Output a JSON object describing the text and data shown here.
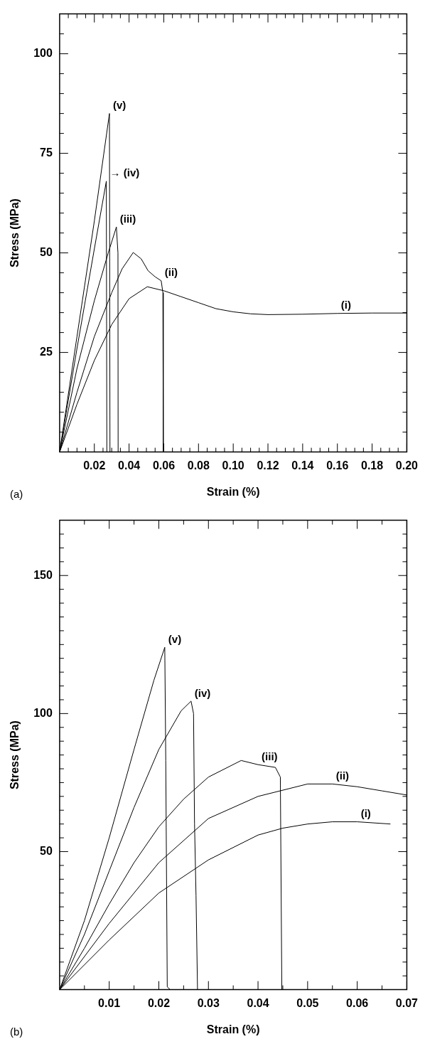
{
  "chart_data": [
    {
      "type": "line",
      "xlabel": "Strain (%)",
      "ylabel": "Stress (MPa)",
      "marker": "none",
      "line_style": "solid",
      "xlim": [
        0,
        0.2
      ],
      "ylim": [
        0,
        110
      ],
      "xticks": [
        {
          "value": 0.005,
          "label": null
        },
        {
          "value": 0.01,
          "label": null
        },
        {
          "value": 0.015,
          "label": null
        },
        0.02,
        {
          "value": 0.025,
          "label": null
        },
        {
          "value": 0.03,
          "label": null
        },
        {
          "value": 0.035,
          "label": null
        },
        0.04,
        {
          "value": 0.045,
          "label": null
        },
        {
          "value": 0.05,
          "label": null
        },
        {
          "value": 0.055,
          "label": null
        },
        0.06,
        {
          "value": 0.065,
          "label": null
        },
        {
          "value": 0.07,
          "label": null
        },
        {
          "value": 0.075,
          "label": null
        },
        0.08,
        {
          "value": 0.085,
          "label": null
        },
        {
          "value": 0.09,
          "label": null
        },
        {
          "value": 0.095,
          "label": null
        },
        {
          "value": 0.1,
          "label": "0.10"
        },
        {
          "value": 0.105,
          "label": null
        },
        {
          "value": 0.11,
          "label": null
        },
        {
          "value": 0.115,
          "label": null
        },
        0.12,
        {
          "value": 0.125,
          "label": null
        },
        {
          "value": 0.13,
          "label": null
        },
        {
          "value": 0.135,
          "label": null
        },
        0.14,
        {
          "value": 0.145,
          "label": null
        },
        {
          "value": 0.15,
          "label": null
        },
        {
          "value": 0.155,
          "label": null
        },
        0.16,
        {
          "value": 0.165,
          "label": null
        },
        {
          "value": 0.17,
          "label": null
        },
        {
          "value": 0.175,
          "label": null
        },
        0.18,
        {
          "value": 0.185,
          "label": null
        },
        {
          "value": 0.19,
          "label": null
        },
        {
          "value": 0.195,
          "label": null
        },
        {
          "value": 0.2,
          "label": "0.20"
        }
      ],
      "yticks": [
        {
          "value": 5,
          "label": null
        },
        {
          "value": 10,
          "label": null
        },
        {
          "value": 15,
          "label": null
        },
        {
          "value": 20,
          "label": null
        },
        25,
        {
          "value": 30,
          "label": null
        },
        {
          "value": 35,
          "label": null
        },
        {
          "value": 40,
          "label": null
        },
        {
          "value": 45,
          "label": null
        },
        50,
        {
          "value": 55,
          "label": null
        },
        {
          "value": 60,
          "label": null
        },
        {
          "value": 65,
          "label": null
        },
        {
          "value": 70,
          "label": null
        },
        75,
        {
          "value": 80,
          "label": null
        },
        {
          "value": 85,
          "label": null
        },
        {
          "value": 90,
          "label": null
        },
        {
          "value": 95,
          "label": null
        },
        100,
        {
          "value": 105,
          "label": null
        }
      ],
      "series": [
        {
          "color": "#000000",
          "x": [
            0,
            0.01,
            0.02,
            0.03,
            0.04,
            0.0505,
            0.06,
            0.07,
            0.08,
            0.09,
            0.1,
            0.11,
            0.12,
            0.14,
            0.16,
            0.18,
            0.2
          ],
          "values": [
            0,
            12,
            23,
            32,
            38.5,
            41.5,
            40.5,
            39,
            37.5,
            36,
            35.2,
            34.7,
            34.5,
            34.6,
            34.8,
            34.9,
            34.9
          ]
        },
        {
          "color": "#000000",
          "x": [
            0,
            0.01,
            0.02,
            0.03,
            0.036,
            0.0424,
            0.047,
            0.051,
            0.055,
            0.0585,
            0.0595,
            0.0597
          ],
          "values": [
            0,
            15,
            29,
            40,
            46,
            50.1,
            48.5,
            45.5,
            44,
            43,
            40,
            0
          ]
        },
        {
          "color": "#000000",
          "x": [
            0,
            0.01,
            0.02,
            0.028,
            0.0327,
            0.0336,
            0.0337
          ],
          "values": [
            0,
            21,
            38,
            50,
            56.5,
            50,
            0
          ]
        },
        {
          "color": "#000000",
          "x": [
            0,
            0.01,
            0.02,
            0.0269,
            0.0272
          ],
          "values": [
            0,
            26,
            51,
            68,
            0
          ]
        },
        {
          "color": "#000000",
          "x": [
            0,
            0.01,
            0.02,
            0.0287,
            0.029
          ],
          "values": [
            0,
            29,
            58,
            85,
            0
          ]
        }
      ],
      "annotations": [
        "(a)",
        {
          "text": "(v)",
          "x": 0.0287,
          "y": 85
        },
        {
          "text": "→ (iv)",
          "x": 0.0269,
          "y": 68
        },
        {
          "text": "(iii)",
          "x": 0.0327,
          "y": 56.5
        },
        {
          "text": "(ii)",
          "x": 0.0585,
          "y": 43
        },
        {
          "text": "(i)",
          "x": 0.16,
          "y": 34.8
        }
      ]
    },
    {
      "type": "line",
      "xlabel": "Strain (%)",
      "ylabel": "Stress (MPa)",
      "marker": "none",
      "line_style": "solid",
      "xlim": [
        0,
        0.07
      ],
      "ylim": [
        0,
        170
      ],
      "xticks": [
        {
          "value": 0.005,
          "label": null
        },
        0.01,
        {
          "value": 0.015,
          "label": null
        },
        0.02,
        {
          "value": 0.025,
          "label": null
        },
        0.03,
        {
          "value": 0.035,
          "label": null
        },
        0.04,
        {
          "value": 0.045,
          "label": null
        },
        0.05,
        {
          "value": 0.055,
          "label": null
        },
        0.06,
        {
          "value": 0.065,
          "label": null
        },
        0.07
      ],
      "yticks": [
        {
          "value": 5,
          "label": null
        },
        {
          "value": 10,
          "label": null
        },
        {
          "value": 15,
          "label": null
        },
        {
          "value": 20,
          "label": null
        },
        {
          "value": 25,
          "label": null
        },
        {
          "value": 30,
          "label": null
        },
        {
          "value": 35,
          "label": null
        },
        {
          "value": 40,
          "label": null
        },
        {
          "value": 45,
          "label": null
        },
        50,
        {
          "value": 55,
          "label": null
        },
        {
          "value": 60,
          "label": null
        },
        {
          "value": 65,
          "label": null
        },
        {
          "value": 70,
          "label": null
        },
        {
          "value": 75,
          "label": null
        },
        {
          "value": 80,
          "label": null
        },
        {
          "value": 85,
          "label": null
        },
        {
          "value": 90,
          "label": null
        },
        {
          "value": 95,
          "label": null
        },
        100,
        {
          "value": 105,
          "label": null
        },
        {
          "value": 110,
          "label": null
        },
        {
          "value": 115,
          "label": null
        },
        {
          "value": 120,
          "label": null
        },
        {
          "value": 125,
          "label": null
        },
        {
          "value": 130,
          "label": null
        },
        {
          "value": 135,
          "label": null
        },
        {
          "value": 140,
          "label": null
        },
        {
          "value": 145,
          "label": null
        },
        150,
        {
          "value": 155,
          "label": null
        },
        {
          "value": 160,
          "label": null
        },
        {
          "value": 165,
          "label": null
        }
      ],
      "series": [
        {
          "color": "#000000",
          "x": [
            0,
            0.01,
            0.02,
            0.03,
            0.04,
            0.045,
            0.05,
            0.055,
            0.06,
            0.0667
          ],
          "values": [
            0,
            18,
            35,
            47,
            56,
            58.5,
            60,
            60.8,
            60.8,
            60
          ]
        },
        {
          "color": "#000000",
          "x": [
            0,
            0.01,
            0.02,
            0.03,
            0.04,
            0.05,
            0.055,
            0.06,
            0.065,
            0.07
          ],
          "values": [
            0,
            24,
            46,
            62,
            70,
            74.5,
            74.5,
            73.5,
            72,
            70.5
          ]
        },
        {
          "color": "#000000",
          "x": [
            0,
            0.005,
            0.01,
            0.015,
            0.02,
            0.025,
            0.03,
            0.0366,
            0.04,
            0.0435,
            0.0445,
            0.0448
          ],
          "values": [
            0,
            15,
            31,
            46,
            59,
            69,
            77,
            83,
            81.5,
            80.5,
            77,
            0
          ]
        },
        {
          "color": "#000000",
          "x": [
            0,
            0.005,
            0.01,
            0.015,
            0.02,
            0.0245,
            0.0265,
            0.027,
            0.0272,
            0.0275,
            0.0278
          ],
          "values": [
            0,
            20,
            43,
            66,
            87,
            101,
            104.5,
            100,
            60,
            34,
            0
          ]
        },
        {
          "color": "#000000",
          "x": [
            0,
            0.005,
            0.01,
            0.015,
            0.019,
            0.0212,
            0.0214,
            0.0217,
            0.0223
          ],
          "values": [
            0,
            25,
            55,
            87,
            112,
            124,
            83,
            1,
            0
          ]
        }
      ],
      "annotations": [
        "(b)",
        {
          "text": "(v)",
          "x": 0.0212,
          "y": 124
        },
        {
          "text": "(iv)",
          "x": 0.0265,
          "y": 104.5
        },
        {
          "text": "(iii)",
          "x": 0.04,
          "y": 81.5
        },
        {
          "text": "(ii)",
          "x": 0.055,
          "y": 74.5
        },
        {
          "text": "(i)",
          "x": 0.06,
          "y": 60.8
        }
      ]
    }
  ]
}
